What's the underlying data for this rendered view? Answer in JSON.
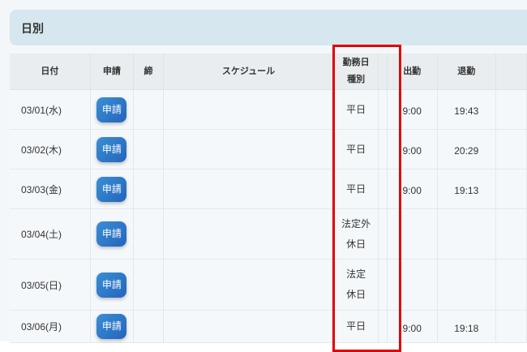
{
  "panel": {
    "title": "日別"
  },
  "table": {
    "headers": {
      "date": "日付",
      "apply": "申請",
      "close": "締",
      "schedule": "スケジュール",
      "kind_line1": "勤務日",
      "kind_line2": "種別",
      "in": "出勤",
      "out": "退勤"
    },
    "rows": [
      {
        "date": "03/01(水)",
        "apply": "申請",
        "kind1": "平日",
        "kind2": "",
        "in": "9:00",
        "out": "19:43"
      },
      {
        "date": "03/02(木)",
        "apply": "申請",
        "kind1": "平日",
        "kind2": "",
        "in": "9:00",
        "out": "20:29"
      },
      {
        "date": "03/03(金)",
        "apply": "申請",
        "kind1": "平日",
        "kind2": "",
        "in": "9:00",
        "out": "19:13"
      },
      {
        "date": "03/04(土)",
        "apply": "申請",
        "kind1": "法定外",
        "kind2": "休日",
        "in": "",
        "out": ""
      },
      {
        "date": "03/05(日)",
        "apply": "申請",
        "kind1": "法定",
        "kind2": "休日",
        "in": "",
        "out": ""
      },
      {
        "date": "03/06(月)",
        "apply": "申請",
        "kind1": "平日",
        "kind2": "",
        "in": "9:00",
        "out": "19:18"
      }
    ]
  },
  "highlight": {
    "color": "#e30000",
    "column": "勤務日種別"
  }
}
